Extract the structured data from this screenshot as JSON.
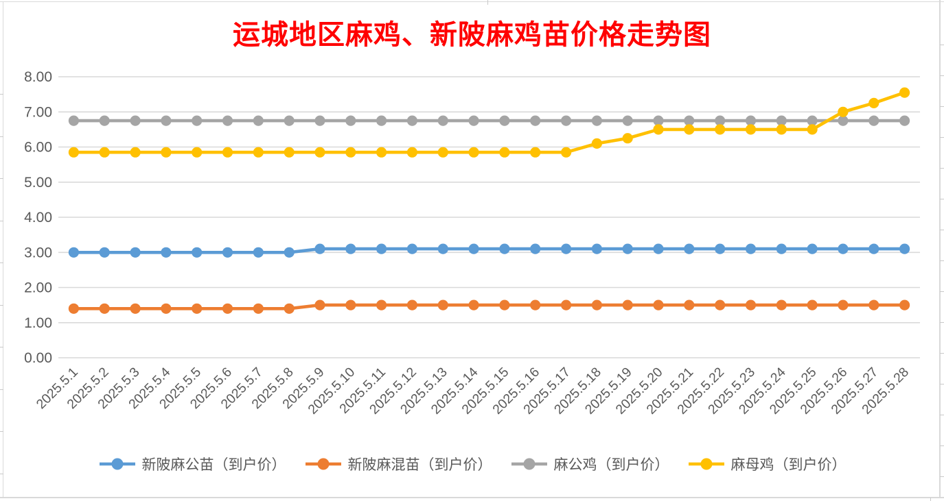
{
  "title": {
    "text": "运城地区麻鸡、新陂麻鸡苗价格走势图",
    "color": "#FF0000"
  },
  "chart_data": {
    "type": "line",
    "title": "运城地区麻鸡、新陂麻鸡苗价格走势图",
    "x": [
      "2025.5.1",
      "2025.5.2",
      "2025.5.3",
      "2025.5.4",
      "2025.5.5",
      "2025.5.6",
      "2025.5.7",
      "2025.5.8",
      "2025.5.9",
      "2025.5.10",
      "2025.5.11",
      "2025.5.12",
      "2025.5.13",
      "2025.5.14",
      "2025.5.15",
      "2025.5.16",
      "2025.5.17",
      "2025.5.18",
      "2025.5.19",
      "2025.5.20",
      "2025.5.21",
      "2025.5.22",
      "2025.5.23",
      "2025.5.24",
      "2025.5.25",
      "2025.5.26",
      "2025.5.27",
      "2025.5.28"
    ],
    "series": [
      {
        "name": "新陂麻公苗（到户价）",
        "color": "#5B9BD5",
        "values": [
          3.0,
          3.0,
          3.0,
          3.0,
          3.0,
          3.0,
          3.0,
          3.0,
          3.1,
          3.1,
          3.1,
          3.1,
          3.1,
          3.1,
          3.1,
          3.1,
          3.1,
          3.1,
          3.1,
          3.1,
          3.1,
          3.1,
          3.1,
          3.1,
          3.1,
          3.1,
          3.1,
          3.1
        ]
      },
      {
        "name": "新陂麻混苗（到户价）",
        "color": "#ED7D31",
        "values": [
          1.4,
          1.4,
          1.4,
          1.4,
          1.4,
          1.4,
          1.4,
          1.4,
          1.5,
          1.5,
          1.5,
          1.5,
          1.5,
          1.5,
          1.5,
          1.5,
          1.5,
          1.5,
          1.5,
          1.5,
          1.5,
          1.5,
          1.5,
          1.5,
          1.5,
          1.5,
          1.5,
          1.5
        ]
      },
      {
        "name": "麻公鸡（到户价）",
        "color": "#A5A5A5",
        "values": [
          6.75,
          6.75,
          6.75,
          6.75,
          6.75,
          6.75,
          6.75,
          6.75,
          6.75,
          6.75,
          6.75,
          6.75,
          6.75,
          6.75,
          6.75,
          6.75,
          6.75,
          6.75,
          6.75,
          6.75,
          6.75,
          6.75,
          6.75,
          6.75,
          6.75,
          6.75,
          6.75,
          6.75
        ]
      },
      {
        "name": "麻母鸡（到户价）",
        "color": "#FFC000",
        "values": [
          5.85,
          5.85,
          5.85,
          5.85,
          5.85,
          5.85,
          5.85,
          5.85,
          5.85,
          5.85,
          5.85,
          5.85,
          5.85,
          5.85,
          5.85,
          5.85,
          5.85,
          6.1,
          6.25,
          6.5,
          6.5,
          6.5,
          6.5,
          6.5,
          6.5,
          7.0,
          7.25,
          7.55
        ]
      }
    ],
    "ylim": [
      0,
      8
    ],
    "y_ticks": [
      "0.00",
      "1.00",
      "2.00",
      "3.00",
      "4.00",
      "5.00",
      "6.00",
      "7.00",
      "8.00"
    ],
    "grid": true,
    "legend_position": "bottom",
    "axis_text_color": "#595959",
    "gridline_color": "#D9D9D9"
  }
}
